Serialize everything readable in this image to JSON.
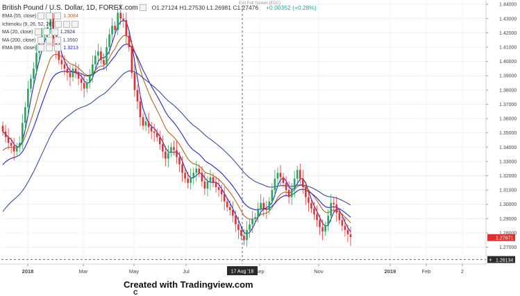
{
  "header": {
    "title": "British Pound / U.S. Dollar, 1D, FOREX.com",
    "ohlc_text": "O1.27124  H1.27530  L1.26981  C1.27476",
    "change_text": "+0.00352 (+0.28%)",
    "fullscreen_hint": "Exit Full Screen (ESC)"
  },
  "legend": [
    {
      "label": "EMA (55, close)",
      "value": "1.3084",
      "color": "#b5651d"
    },
    {
      "label": "Ichimoku (9, 26, 52, 26)",
      "value": "",
      "color": "#9aa5b1"
    },
    {
      "label": "MA (20, close)",
      "value": "1.2924",
      "color": "#1e22c8"
    },
    {
      "label": "MA (200, close)",
      "value": "1.3560",
      "color": "#2f4f9e"
    },
    {
      "label": "EMA (89, close)",
      "value": "1.3213",
      "color": "#1e22c8"
    }
  ],
  "caption": "Created with Tradingview.com",
  "caption_fragment": "C",
  "chart_data": {
    "type": "candlestick",
    "y_range": [
      1.263,
      1.443
    ],
    "y_ticks": [
      "1.44000",
      "1.43000",
      "1.42000",
      "1.41000",
      "1.40000",
      "1.39000",
      "1.38000",
      "1.37000",
      "1.36000",
      "1.35000",
      "1.34000",
      "1.33000",
      "1.32000",
      "1.31000",
      "1.30000",
      "1.29000",
      "1.28000",
      "1.27000"
    ],
    "x_ticks": [
      "2018",
      "Mar",
      "May",
      "Jul",
      "Sep",
      "Nov",
      "2019",
      "Feb",
      "2"
    ],
    "crosshair_date": "17 Aug '18",
    "last_price": "1.27671",
    "crosshair_price": "1.26134",
    "close": [
      1.351,
      1.347,
      1.343,
      1.341,
      1.337,
      1.34,
      1.343,
      1.357,
      1.368,
      1.381,
      1.388,
      1.395,
      1.406,
      1.413,
      1.418,
      1.421,
      1.424,
      1.43,
      1.416,
      1.408,
      1.401,
      1.398,
      1.395,
      1.392,
      1.389,
      1.395,
      1.392,
      1.388,
      1.385,
      1.381,
      1.385,
      1.39,
      1.398,
      1.404,
      1.407,
      1.401,
      1.398,
      1.41,
      1.419,
      1.425,
      1.422,
      1.434,
      1.43,
      1.429,
      1.418,
      1.41,
      1.392,
      1.38,
      1.372,
      1.361,
      1.355,
      1.358,
      1.354,
      1.351,
      1.35,
      1.347,
      1.342,
      1.337,
      1.332,
      1.336,
      1.34,
      1.338,
      1.333,
      1.328,
      1.322,
      1.318,
      1.315,
      1.319,
      1.322,
      1.325,
      1.322,
      1.316,
      1.311,
      1.316,
      1.319,
      1.315,
      1.312,
      1.31,
      1.307,
      1.302,
      1.298,
      1.296,
      1.292,
      1.286,
      1.282,
      1.278,
      1.275,
      1.282,
      1.286,
      1.29,
      1.291,
      1.297,
      1.301,
      1.297,
      1.296,
      1.302,
      1.31,
      1.318,
      1.322,
      1.319,
      1.315,
      1.31,
      1.305,
      1.311,
      1.318,
      1.324,
      1.318,
      1.312,
      1.305,
      1.301,
      1.297,
      1.293,
      1.289,
      1.284,
      1.281,
      1.285,
      1.292,
      1.301,
      1.3,
      1.294,
      1.289,
      1.285,
      1.282,
      1.279,
      1.277
    ],
    "ma20_end": 1.2924,
    "ema55_end": 1.3084,
    "ema89_end": 1.3213,
    "ma200_end": 1.356
  }
}
